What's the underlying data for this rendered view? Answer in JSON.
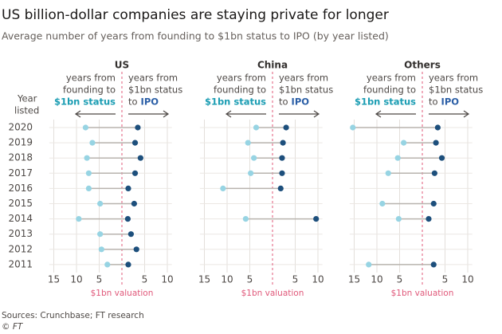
{
  "title": "US billion-dollar companies are staying private for longer",
  "subtitle": "Average number of years from founding to $1bn status to IPO (by year listed)",
  "y_axis_label": [
    "Year",
    "listed"
  ],
  "source": "Sources: Crunchbase; FT research",
  "credit": "© FT",
  "chart_data": [
    {
      "type": "dot",
      "title": "US",
      "reference_label": "$1bn valuation",
      "categories": [
        "2020",
        "2019",
        "2018",
        "2017",
        "2016",
        "2015",
        "2014",
        "2013",
        "2012",
        "2011"
      ],
      "xlim": [
        -16,
        11
      ],
      "xticks": [
        {
          "value": -15,
          "label": "15"
        },
        {
          "value": -10,
          "label": "10"
        },
        {
          "value": -5,
          "label": "5"
        },
        5,
        10
      ],
      "grid": true,
      "series": [
        {
          "label_lines": [
            "years from",
            "founding to"
          ],
          "label_key": "$1bn status",
          "color": "#97d4e3",
          "key_color": "#1b9db3",
          "values": [
            -8,
            -6.5,
            -7.7,
            -7.3,
            -7.3,
            -4.8,
            -9.5,
            -4.8,
            -4.5,
            -3.2
          ]
        },
        {
          "label_lines": [
            "years from",
            "$1bn status"
          ],
          "label_prefix": "to",
          "label_key": "IPO",
          "color": "#1d4f7c",
          "key_color": "#2a5ea6",
          "values": [
            3.5,
            2.9,
            4.1,
            2.9,
            1.4,
            2.7,
            1.3,
            2,
            3.2,
            1.4
          ]
        }
      ]
    },
    {
      "type": "dot",
      "title": "China",
      "reference_label": "$1bn valuation",
      "categories": [
        "2020",
        "2019",
        "2018",
        "2017",
        "2016",
        "2015",
        "2014",
        "2013",
        "2012",
        "2011"
      ],
      "xlim": [
        -16,
        11
      ],
      "xticks": [
        {
          "value": -15,
          "label": "15"
        },
        {
          "value": -10,
          "label": "10"
        },
        {
          "value": -5,
          "label": "5"
        },
        5,
        10
      ],
      "grid": true,
      "series": [
        {
          "label_lines": [
            "years from",
            "founding to"
          ],
          "label_key": "$1bn status",
          "color": "#97d4e3",
          "key_color": "#1b9db3",
          "values": [
            -3.6,
            -5.4,
            -4.1,
            -4.8,
            -10.9,
            null,
            -5.9,
            null,
            null,
            null
          ]
        },
        {
          "label_lines": [
            "years from",
            "$1bn status"
          ],
          "label_prefix": "to",
          "label_key": "IPO",
          "color": "#1d4f7c",
          "key_color": "#2a5ea6",
          "values": [
            3,
            2.3,
            2.1,
            2.1,
            1.8,
            null,
            9.6,
            null,
            null,
            null
          ]
        }
      ]
    },
    {
      "type": "dot",
      "title": "Others",
      "reference_label": "$1bn valuation",
      "categories": [
        "2020",
        "2019",
        "2018",
        "2017",
        "2016",
        "2015",
        "2014",
        "2013",
        "2012",
        "2011"
      ],
      "xlim": [
        -16,
        11
      ],
      "xticks": [
        {
          "value": -15,
          "label": "15"
        },
        {
          "value": -10,
          "label": "10"
        },
        {
          "value": -5,
          "label": "5"
        },
        5,
        10
      ],
      "grid": true,
      "series": [
        {
          "label_lines": [
            "years from",
            "founding to"
          ],
          "label_key": "$1bn status",
          "color": "#97d4e3",
          "key_color": "#1b9db3",
          "values": [
            -15.3,
            -4.1,
            -5.4,
            -7.5,
            null,
            -8.8,
            -5.2,
            null,
            null,
            -11.8
          ]
        },
        {
          "label_lines": [
            "years from",
            "$1bn status"
          ],
          "label_prefix": "to",
          "label_key": "IPO",
          "color": "#1d4f7c",
          "key_color": "#2a5ea6",
          "values": [
            3.4,
            3,
            4.3,
            2.7,
            null,
            2.5,
            1.4,
            null,
            null,
            2.5
          ]
        }
      ]
    }
  ]
}
